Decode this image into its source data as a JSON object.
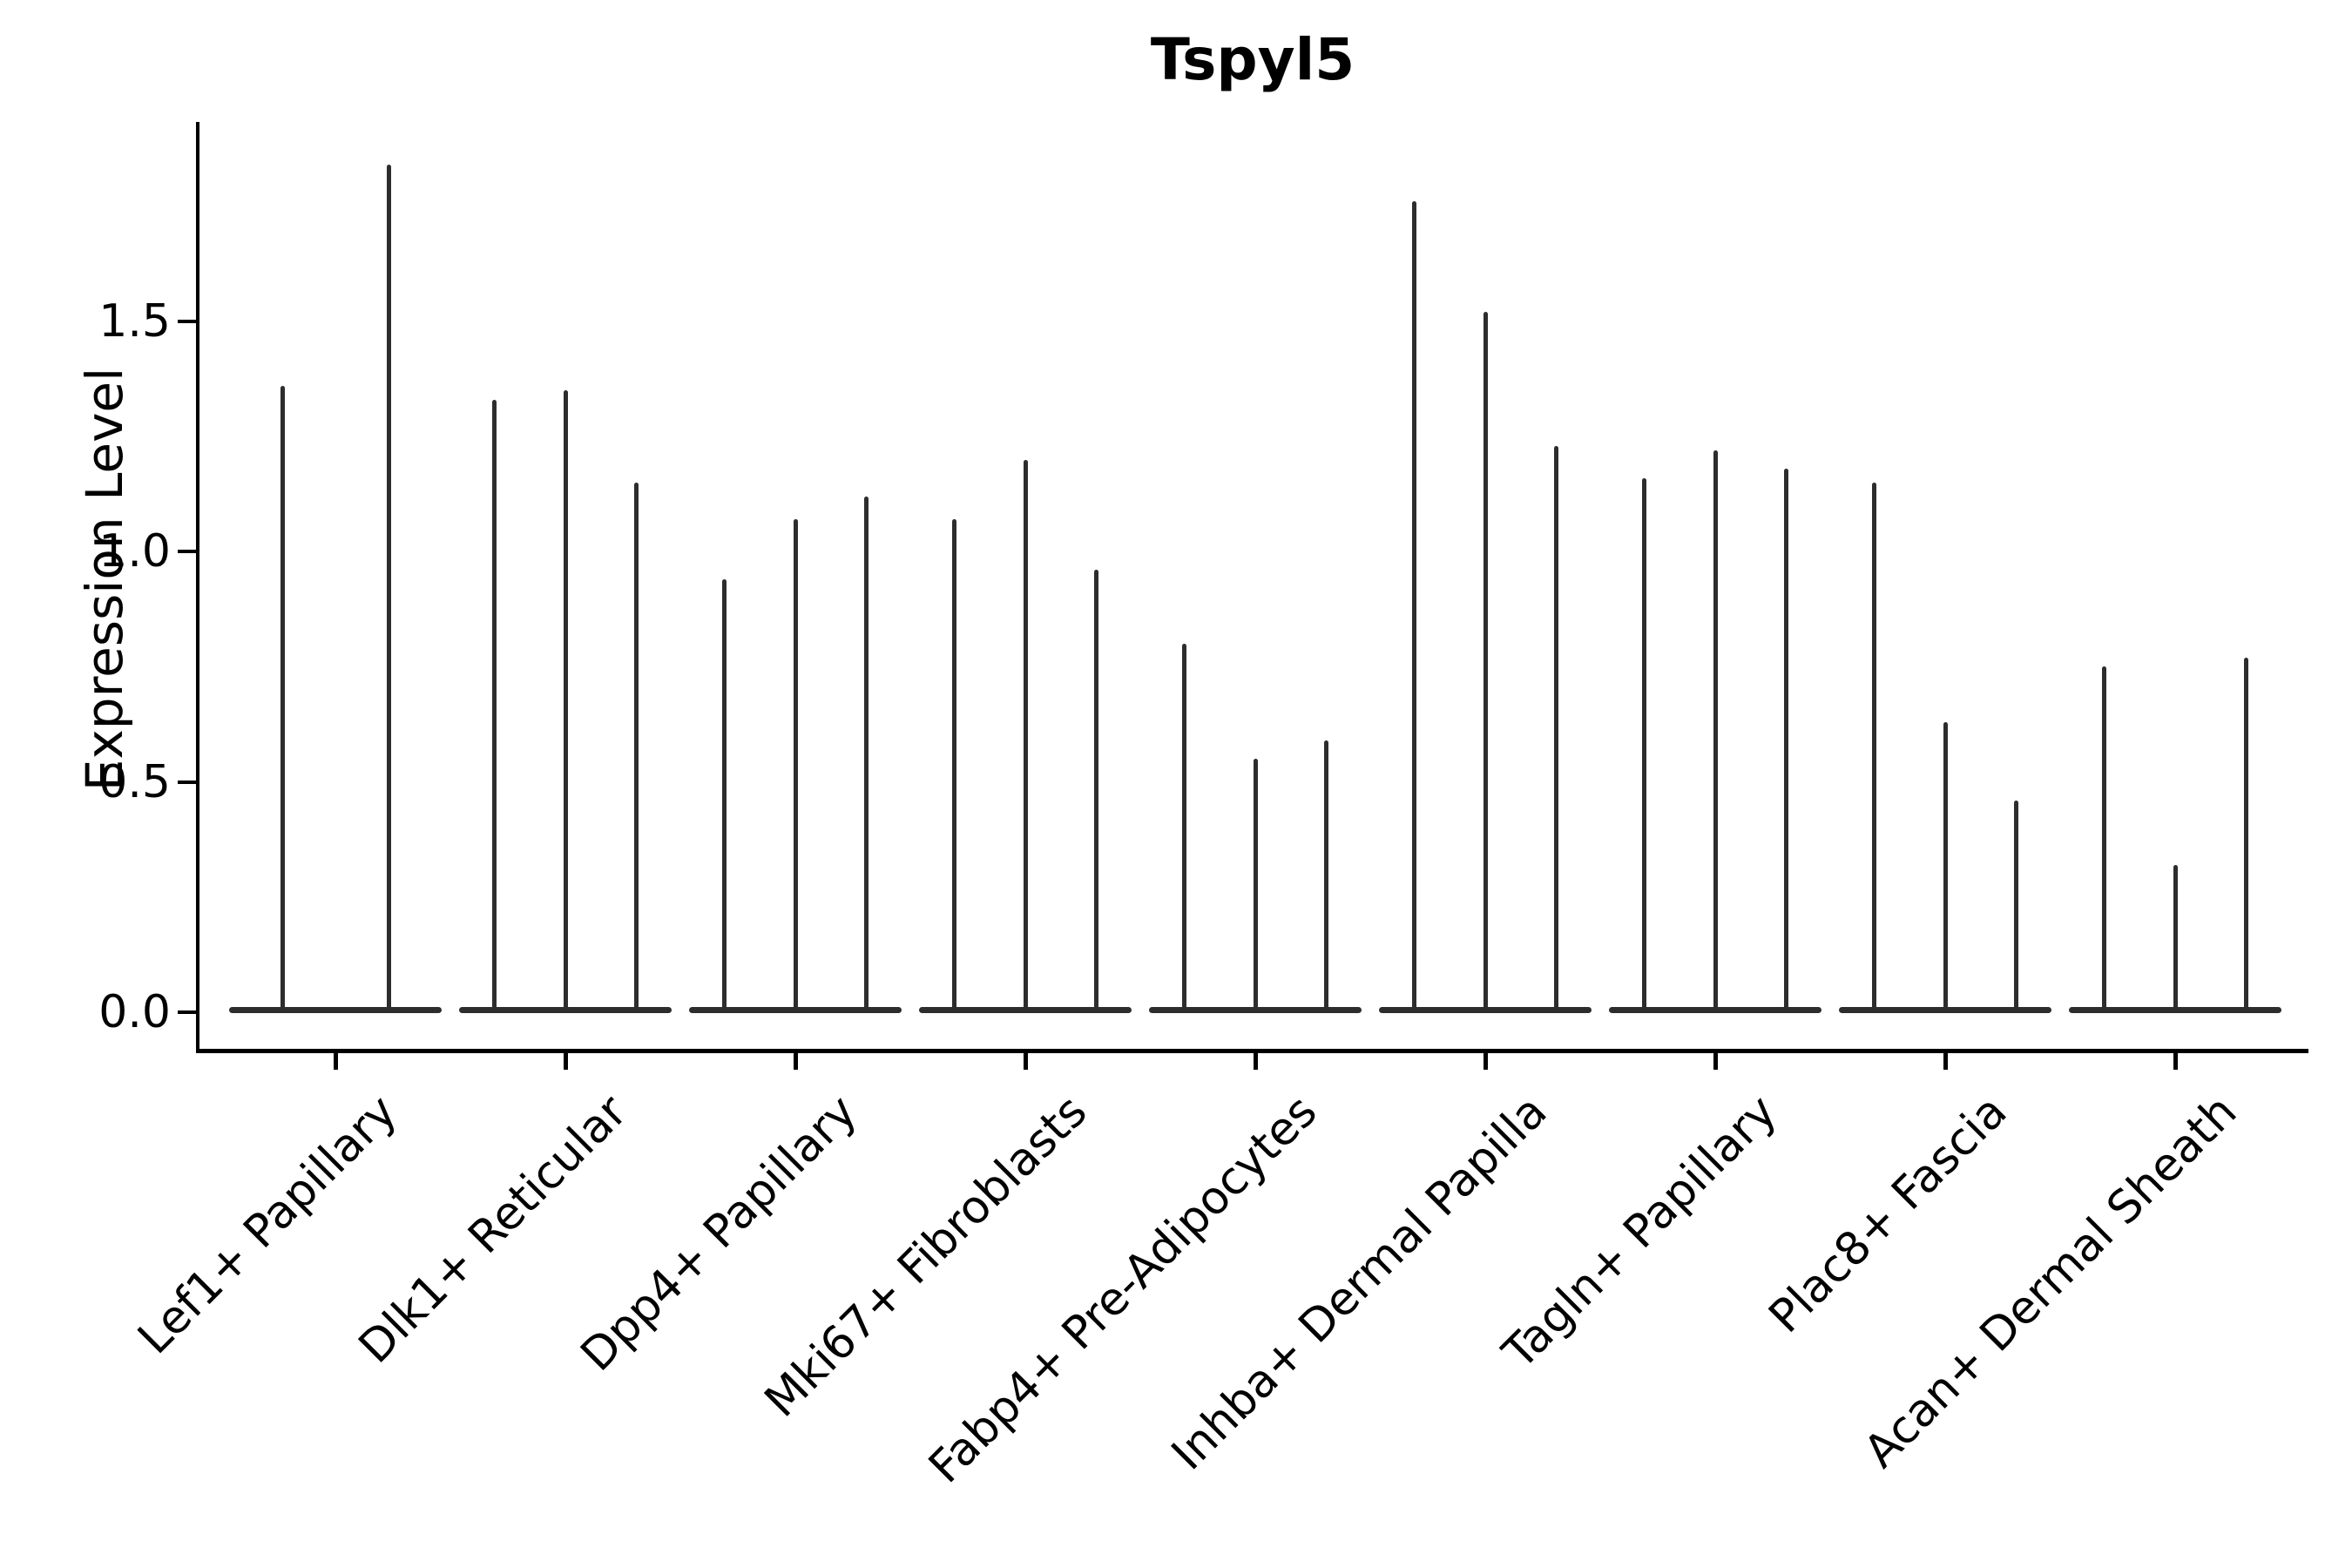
{
  "chart_data": {
    "type": "violin",
    "title": "Tspyl5",
    "ylabel": "Expression Level",
    "xlabel": "",
    "ylim": [
      -0.09,
      1.93
    ],
    "yticks": [
      0.0,
      0.5,
      1.0,
      1.5
    ],
    "ytick_labels": [
      "0.0",
      "0.5",
      "1.0",
      "1.5"
    ],
    "grid": false,
    "legend_position": "none",
    "violin_color": "#2d2d2d",
    "axis_color": "#000000",
    "background_color": "#ffffff",
    "categories": [
      "Lef1+ Papillary",
      "Dlk1+ Reticular",
      "Dpp4+ Papillary",
      "Mki67+ Fibroblasts",
      "Fabp4+ Pre-Adipocytes",
      "Inhba+ Dermal Papilla",
      "Tagln+ Papillary",
      "Plac8+ Fascia",
      "Acan+ Dermal Sheath"
    ],
    "groups": [
      {
        "label": "Lef1+ Papillary",
        "violin_max_values": [
          1.36,
          1.84
        ]
      },
      {
        "label": "Dlk1+ Reticular",
        "violin_max_values": [
          1.33,
          1.35,
          1.15
        ]
      },
      {
        "label": "Dpp4+ Papillary",
        "violin_max_values": [
          0.94,
          1.07,
          1.12
        ]
      },
      {
        "label": "Mki67+ Fibroblasts",
        "violin_max_values": [
          1.07,
          1.2,
          0.96
        ]
      },
      {
        "label": "Fabp4+ Pre-Adipocytes",
        "violin_max_values": [
          0.8,
          0.55,
          0.59
        ]
      },
      {
        "label": "Inhba+ Dermal Papilla",
        "violin_max_values": [
          1.76,
          1.52,
          1.23
        ]
      },
      {
        "label": "Tagln+ Papillary",
        "violin_max_values": [
          1.16,
          1.22,
          1.18
        ]
      },
      {
        "label": "Plac8+ Fascia",
        "violin_max_values": [
          1.15,
          0.63,
          0.46
        ]
      },
      {
        "label": "Acan+ Dermal Sheath",
        "violin_max_values": [
          0.75,
          0.32,
          0.77
        ]
      }
    ]
  }
}
